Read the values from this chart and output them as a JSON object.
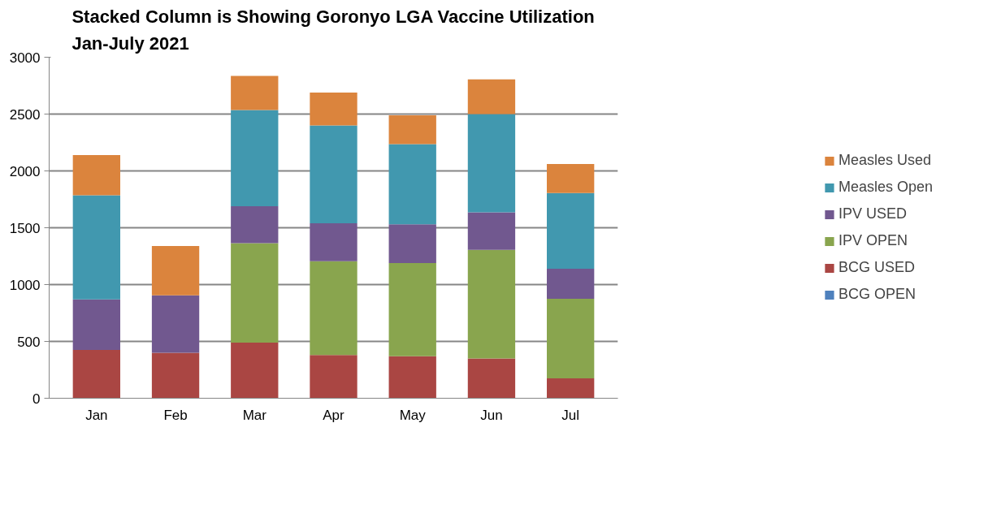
{
  "chart_data": {
    "type": "bar",
    "stacked": true,
    "title": "Stacked Column is Showing Goronyo LGA Vaccine Utilization\nJan-July 2021",
    "categories": [
      "Jan",
      "Feb",
      "Mar",
      "Apr",
      "May",
      "Jun",
      "Jul"
    ],
    "series": [
      {
        "name": "BCG OPEN",
        "color": "#4f81bd",
        "values": [
          0,
          0,
          0,
          0,
          0,
          0,
          0
        ]
      },
      {
        "name": "BCG USED",
        "color": "#aa4643",
        "values": [
          425,
          400,
          490,
          380,
          370,
          350,
          175
        ]
      },
      {
        "name": "IPV OPEN",
        "color": "#89a54e",
        "values": [
          0,
          0,
          875,
          825,
          820,
          955,
          700
        ]
      },
      {
        "name": "IPV USED",
        "color": "#71588f",
        "values": [
          445,
          505,
          325,
          335,
          340,
          330,
          265
        ]
      },
      {
        "name": "Measles Open",
        "color": "#4198af",
        "values": [
          915,
          0,
          845,
          860,
          705,
          865,
          665
        ]
      },
      {
        "name": "Measles Used",
        "color": "#db843d",
        "values": [
          355,
          435,
          300,
          290,
          255,
          305,
          255
        ]
      }
    ],
    "ylim": [
      0,
      3000
    ],
    "yticks": [
      0,
      500,
      1000,
      1500,
      2000,
      2500,
      3000
    ],
    "grid": "y",
    "legend": "right"
  }
}
